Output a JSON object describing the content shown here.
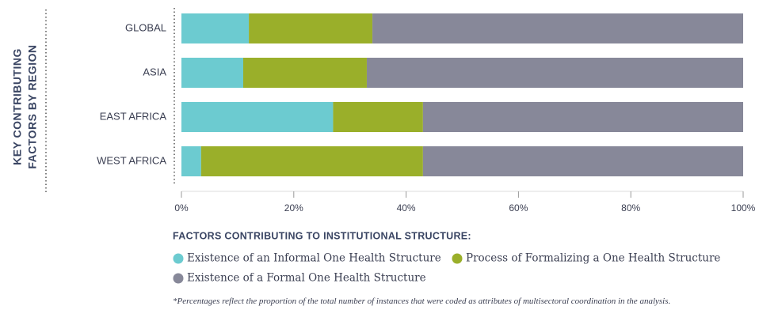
{
  "chart_data": {
    "type": "bar",
    "orientation": "horizontal",
    "stacked": true,
    "side_title": [
      "KEY CONTRIBUTING",
      "FACTORS BY REGION"
    ],
    "categories": [
      "GLOBAL",
      "ASIA",
      "EAST AFRICA",
      "WEST AFRICA"
    ],
    "series": [
      {
        "name": "Existence of an Informal One Health Structure",
        "color": "#6ccbd0",
        "values": [
          12,
          11,
          27,
          3.5
        ]
      },
      {
        "name": "Process of Formalizing a One Health Structure",
        "color": "#9aaf2a",
        "values": [
          22,
          22,
          16,
          39.5
        ]
      },
      {
        "name": "Existence of a Formal One Health Structure",
        "color": "#878899",
        "values": [
          66,
          67,
          57,
          57
        ]
      }
    ],
    "xlim": [
      0,
      100
    ],
    "xticks": [
      {
        "value": 0,
        "label": "0%"
      },
      {
        "value": 20,
        "label": "20%"
      },
      {
        "value": 40,
        "label": "40%"
      },
      {
        "value": 60,
        "label": "60%"
      },
      {
        "value": 80,
        "label": "80%"
      },
      {
        "value": 100,
        "label": "100%"
      }
    ],
    "legend_title": "FACTORS CONTRIBUTING TO INSTITUTIONAL STRUCTURE:",
    "footnote": "*Percentages reflect the proportion of the total number of instances that were coded as attributes of multisectoral coordination in the analysis."
  }
}
